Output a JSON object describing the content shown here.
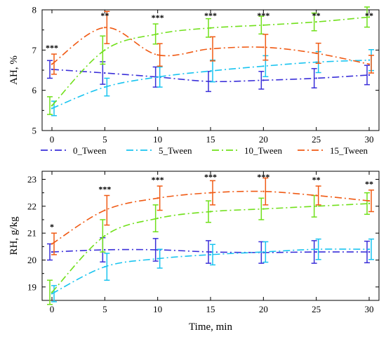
{
  "chart_data": {
    "type": "line",
    "x": [
      0,
      5,
      10,
      15,
      20,
      25,
      30
    ],
    "xticks": [
      "0",
      "5",
      "10",
      "15",
      "20",
      "25",
      "30"
    ],
    "xlabel": "Time, min",
    "legend": {
      "placement": "between panels",
      "entries": [
        "0_Tween",
        "5_Tween",
        "10_Tween",
        "15_Tween"
      ]
    },
    "colors": {
      "0_Tween": "#3a2fd9",
      "5_Tween": "#19c4f0",
      "10_Tween": "#70e01a",
      "15_Tween": "#f05a14"
    },
    "panels": [
      {
        "id": "ah",
        "ylabel": "AH, %",
        "ylim": [
          5,
          8
        ],
        "yticks": [
          "5",
          "6",
          "7",
          "8"
        ],
        "grid": false,
        "series": [
          {
            "name": "0_Tween",
            "values": [
              6.52,
              6.43,
              6.33,
              6.22,
              6.25,
              6.3,
              6.38
            ],
            "errors": [
              0.22,
              0.28,
              0.25,
              0.25,
              0.22,
              0.24,
              0.24
            ]
          },
          {
            "name": "5_Tween",
            "values": [
              5.55,
              6.08,
              6.33,
              6.48,
              6.6,
              6.7,
              6.75
            ],
            "errors": [
              0.18,
              0.22,
              0.25,
              0.27,
              0.26,
              0.26,
              0.26
            ]
          },
          {
            "name": "10_Tween",
            "values": [
              5.62,
              7.0,
              7.4,
              7.55,
              7.62,
              7.7,
              7.82
            ],
            "errors": [
              0.22,
              0.35,
              0.25,
              0.23,
              0.22,
              0.22,
              0.25
            ]
          },
          {
            "name": "15_Tween",
            "values": [
              6.65,
              7.56,
              6.88,
              7.03,
              7.07,
              6.92,
              6.65
            ],
            "errors": [
              0.25,
              0.4,
              0.28,
              0.3,
              0.32,
              0.25,
              0.22
            ]
          }
        ],
        "annotations": [
          {
            "x": 0,
            "text": "***"
          },
          {
            "x": 5,
            "text": "**"
          },
          {
            "x": 10,
            "text": "***"
          },
          {
            "x": 15,
            "text": "***"
          },
          {
            "x": 20,
            "text": "***"
          },
          {
            "x": 25,
            "text": "**"
          },
          {
            "x": 30,
            "text": "**"
          }
        ]
      },
      {
        "id": "rh",
        "ylabel": "RH, g/kg",
        "ylim": [
          18.5,
          23.3
        ],
        "yticks": [
          "19",
          "20",
          "21",
          "22",
          "23"
        ],
        "grid": false,
        "series": [
          {
            "name": "0_Tween",
            "values": [
              20.3,
              20.38,
              20.38,
              20.3,
              20.28,
              20.3,
              20.3
            ],
            "errors": [
              0.3,
              0.45,
              0.42,
              0.42,
              0.4,
              0.42,
              0.4
            ]
          },
          {
            "name": "5_Tween",
            "values": [
              18.75,
              19.75,
              20.05,
              20.2,
              20.3,
              20.4,
              20.4
            ],
            "errors": [
              0.3,
              0.5,
              0.35,
              0.38,
              0.38,
              0.38,
              0.38
            ]
          },
          {
            "name": "10_Tween",
            "values": [
              18.8,
              20.9,
              21.55,
              21.8,
              21.9,
              22.0,
              22.1
            ],
            "errors": [
              0.45,
              0.6,
              0.5,
              0.4,
              0.4,
              0.4,
              0.4
            ]
          },
          {
            "name": "15_Tween",
            "values": [
              20.6,
              21.85,
              22.3,
              22.5,
              22.55,
              22.4,
              22.2
            ],
            "errors": [
              0.4,
              0.55,
              0.45,
              0.45,
              0.5,
              0.35,
              0.4
            ]
          }
        ],
        "annotations": [
          {
            "x": 0,
            "text": "*"
          },
          {
            "x": 5,
            "text": "***"
          },
          {
            "x": 10,
            "text": "***"
          },
          {
            "x": 15,
            "text": "***"
          },
          {
            "x": 20,
            "text": "***"
          },
          {
            "x": 25,
            "text": "**"
          },
          {
            "x": 30,
            "text": "**"
          }
        ]
      }
    ]
  }
}
